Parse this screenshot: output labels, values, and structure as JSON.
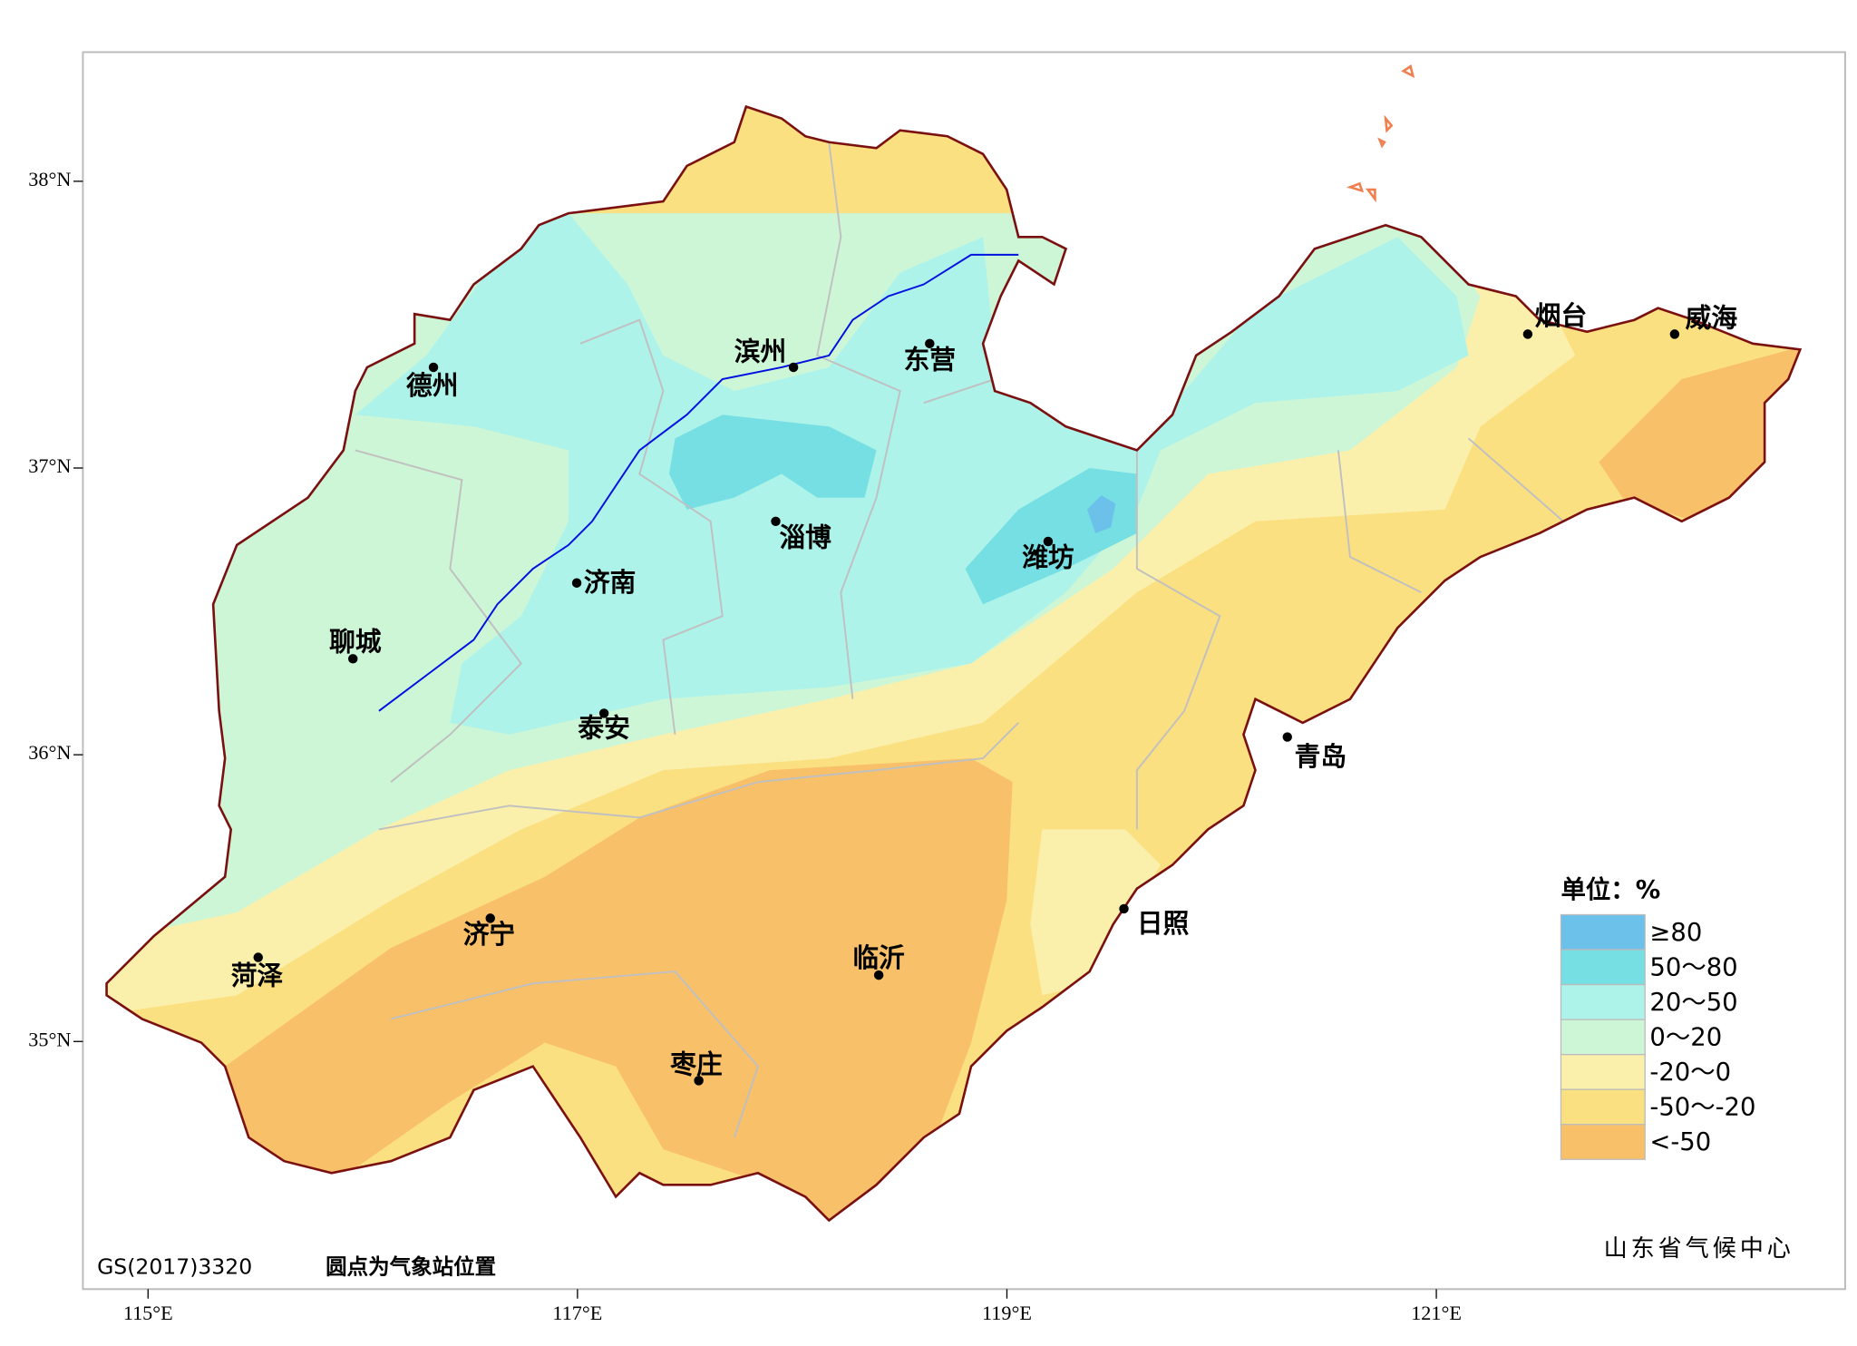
{
  "axes": {
    "x_ticks": [
      {
        "value": 115,
        "label": "115°E"
      },
      {
        "value": 117,
        "label": "117°E"
      },
      {
        "value": 119,
        "label": "119°E"
      },
      {
        "value": 121,
        "label": "121°E"
      }
    ],
    "y_ticks": [
      {
        "value": 38,
        "label": "38°N"
      },
      {
        "value": 37,
        "label": "37°N"
      },
      {
        "value": 36,
        "label": "36°N"
      },
      {
        "value": 35,
        "label": "35°N"
      }
    ]
  },
  "cities": [
    "德州",
    "滨州",
    "东营",
    "烟台",
    "威海",
    "淄博",
    "潍坊",
    "济南",
    "聊城",
    "泰安",
    "青岛",
    "日照",
    "济宁",
    "菏泽",
    "临沂",
    "枣庄"
  ],
  "legend": {
    "title": "单位：%",
    "items": [
      {
        "label": "≥80",
        "color": "#6cc1ea"
      },
      {
        "label": "50～80",
        "color": "#76dfe3"
      },
      {
        "label": "20～50",
        "color": "#aef3ea"
      },
      {
        "label": "0～20",
        "color": "#cdf6d7"
      },
      {
        "label": "-20～0",
        "color": "#fbf0ab"
      },
      {
        "label": "-50～-20",
        "color": "#fbe082"
      },
      {
        "label": "<-50",
        "color": "#f9c06a"
      }
    ]
  },
  "footer": {
    "code": "GS(2017)3320",
    "note": "圆点为气象站位置",
    "source": "山东省气候中心"
  }
}
